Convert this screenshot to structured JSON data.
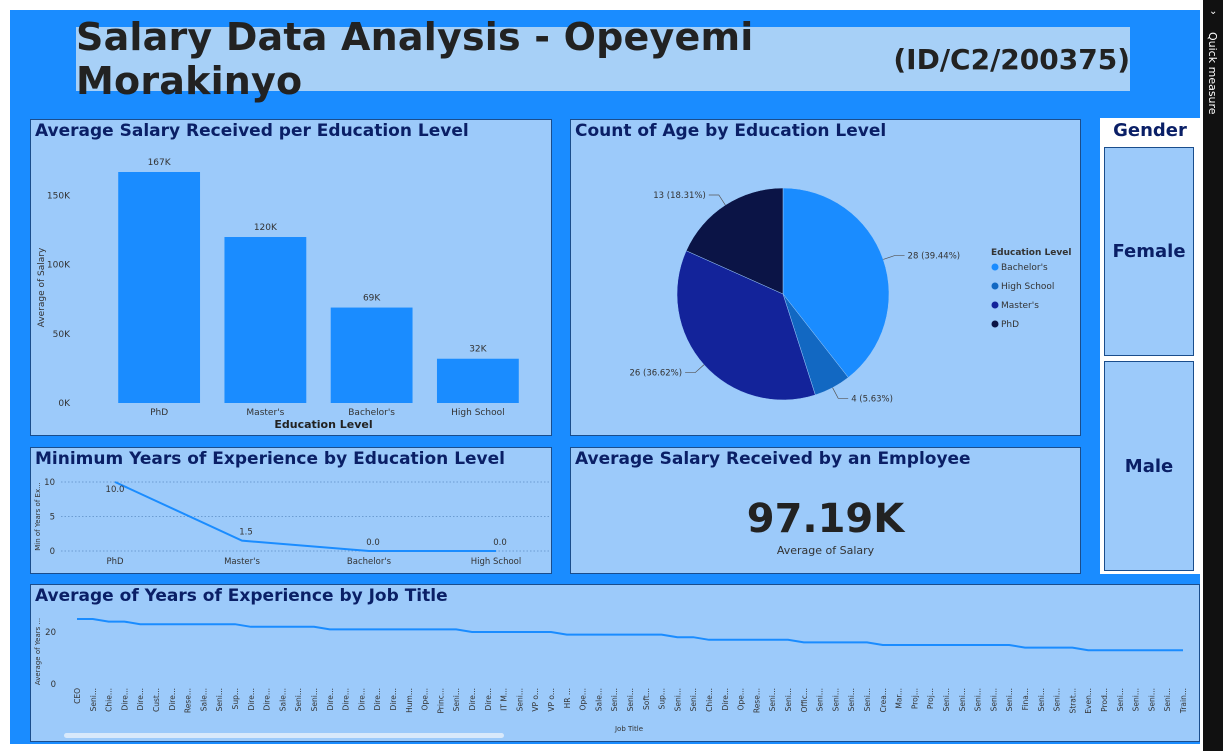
{
  "title": {
    "main": "Salary Data Analysis - Opeyemi Morakinyo",
    "id": "(ID/C2/200375)"
  },
  "colors": {
    "canvas": "#1a8cff",
    "panel": "#9ccafa",
    "bar": "#1a8cff",
    "title_text": "#0a1f66"
  },
  "side_pane": {
    "label": "Quick measure",
    "icon": "chevron-down-icon"
  },
  "slicer": {
    "title": "Gender",
    "options": [
      "Female",
      "Male"
    ]
  },
  "kpi": {
    "title": "Average Salary Received by an Employee",
    "value": "97.19K",
    "label": "Average of Salary"
  },
  "chart_data": [
    {
      "type": "bar",
      "title": "Average Salary Received per Education Level",
      "categories": [
        "PhD",
        "Master's",
        "Bachelor's",
        "High School"
      ],
      "values": [
        167000,
        120000,
        69000,
        32000
      ],
      "data_labels": [
        "167K",
        "120K",
        "69K",
        "32K"
      ],
      "xlabel": "Education Level",
      "ylabel": "Average of Salary",
      "ylim": [
        0,
        167000
      ],
      "yticks": [
        0,
        50000,
        100000,
        150000
      ],
      "ytick_labels": [
        "0K",
        "50K",
        "100K",
        "150K"
      ]
    },
    {
      "type": "pie",
      "title": "Count of Age by Education Level",
      "legend_title": "Education Level",
      "legend_position": "right",
      "slices": [
        {
          "label": "Bachelor's",
          "value": 28,
          "text": "28 (39.44%)",
          "color": "#1a8cff"
        },
        {
          "label": "High School",
          "value": 4,
          "text": "4 (5.63%)",
          "color": "#1268c2"
        },
        {
          "label": "Master's",
          "value": 26,
          "text": "26 (36.62%)",
          "color": "#13239a"
        },
        {
          "label": "PhD",
          "value": 13,
          "text": "13 (18.31%)",
          "color": "#0b1446"
        }
      ]
    },
    {
      "type": "line",
      "title": "Minimum Years of Experience by Education Level",
      "categories": [
        "PhD",
        "Master's",
        "Bachelor's",
        "High School"
      ],
      "values": [
        10.0,
        1.5,
        0.0,
        0.0
      ],
      "data_labels": [
        "10.0",
        "1.5",
        "0.0",
        "0.0"
      ],
      "ylabel": "Min of Years of Ex...",
      "ylim": [
        0,
        10
      ],
      "yticks": [
        0,
        5,
        10
      ],
      "grid": true
    },
    {
      "type": "line",
      "title": "Average of Years of Experience by Job Title",
      "xlabel": "Job Title",
      "ylabel": "Average of Years ...",
      "ylim": [
        0,
        25
      ],
      "yticks": [
        0,
        20
      ],
      "categories": [
        "CEO",
        "Seni...",
        "Chie...",
        "Dire...",
        "Dire...",
        "Cust...",
        "Dire...",
        "Rese...",
        "Sale...",
        "Seni...",
        "Sup...",
        "Dire...",
        "Dire...",
        "Sale...",
        "Seni...",
        "Seni...",
        "Dire...",
        "Dire...",
        "Dire...",
        "Dire...",
        "Dire...",
        "Hum...",
        "Ope...",
        "Princ...",
        "Seni...",
        "Dire...",
        "Dire...",
        "IT M...",
        "Seni...",
        "VP o...",
        "VP o...",
        "HR ...",
        "Ope...",
        "Sale...",
        "Seni...",
        "Seni...",
        "Soft...",
        "Sup...",
        "Seni...",
        "Seni...",
        "Chie...",
        "Dire...",
        "Ope...",
        "Rese...",
        "Seni...",
        "Seni...",
        "Offic...",
        "Seni...",
        "Seni...",
        "Seni...",
        "Seni...",
        "Crea...",
        "Mar...",
        "Proj...",
        "Proj...",
        "Seni...",
        "Seni...",
        "Seni...",
        "Seni...",
        "Seni...",
        "Fina...",
        "Seni...",
        "Seni...",
        "Strat...",
        "Even...",
        "Prod...",
        "Seni...",
        "Seni...",
        "Seni...",
        "Seni...",
        "Train..."
      ],
      "values": [
        25,
        25,
        24,
        24,
        23,
        23,
        23,
        23,
        23,
        23,
        23,
        22,
        22,
        22,
        22,
        22,
        21,
        21,
        21,
        21,
        21,
        21,
        21,
        21,
        21,
        20,
        20,
        20,
        20,
        20,
        20,
        19,
        19,
        19,
        19,
        19,
        19,
        19,
        18,
        18,
        17,
        17,
        17,
        17,
        17,
        17,
        16,
        16,
        16,
        16,
        16,
        15,
        15,
        15,
        15,
        15,
        15,
        15,
        15,
        15,
        14,
        14,
        14,
        14,
        13,
        13,
        13,
        13,
        13,
        13,
        13
      ]
    }
  ]
}
